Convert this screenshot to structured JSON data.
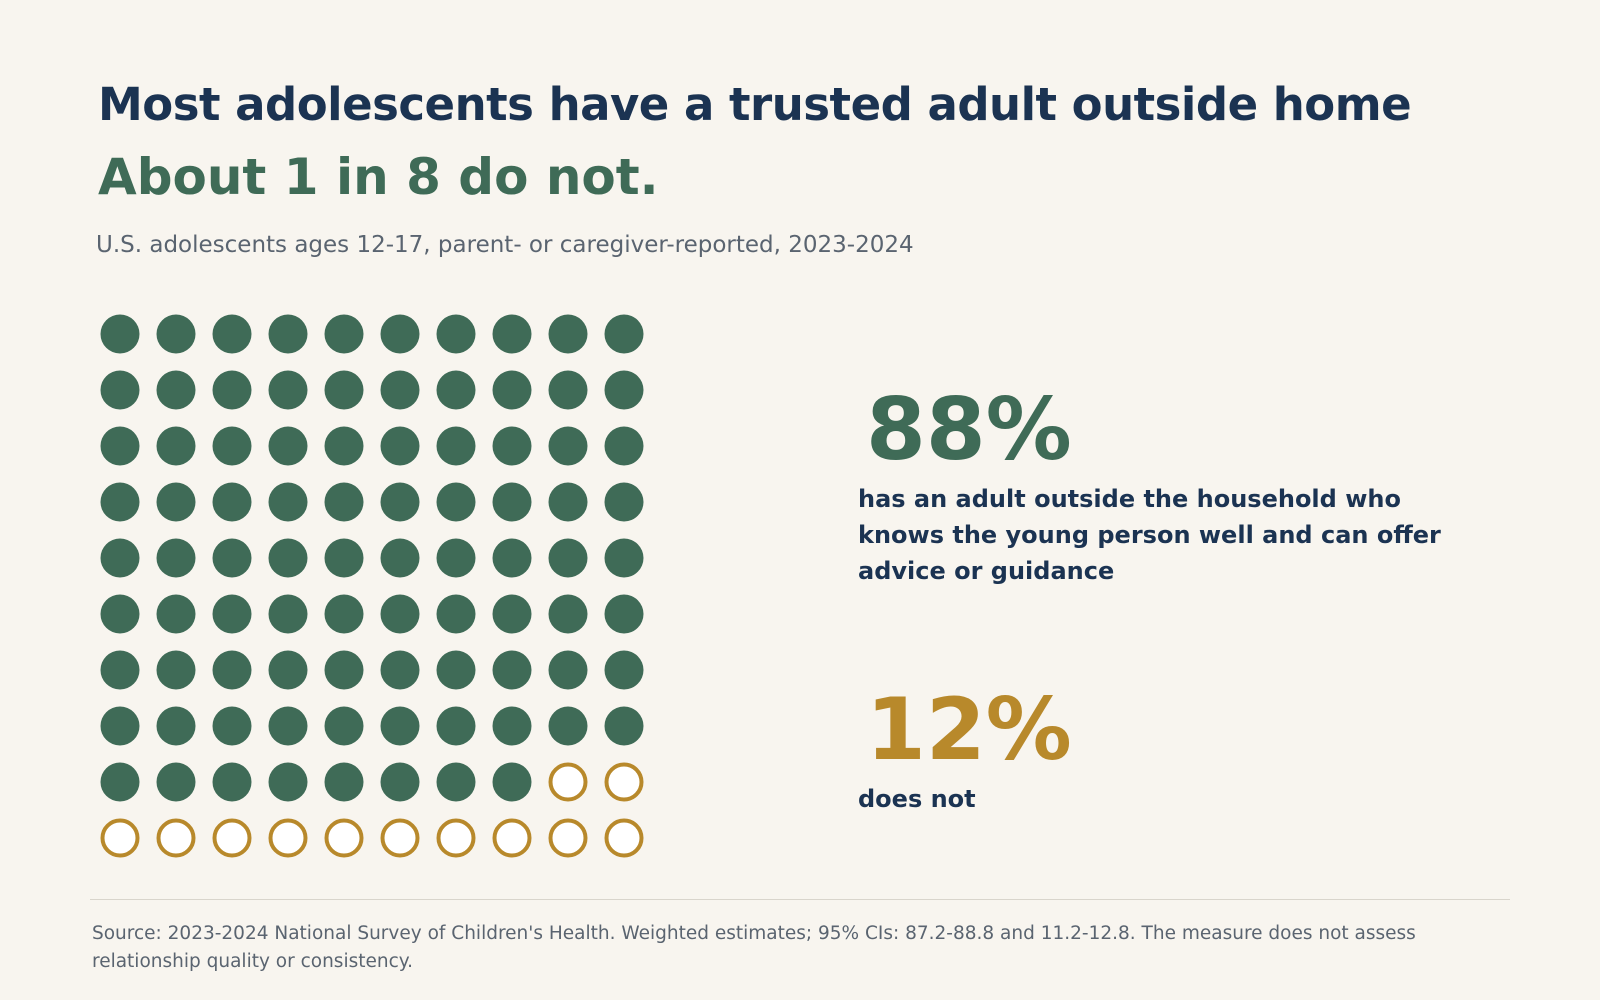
{
  "header": {
    "title": "Most adolescents have a trusted adult outside home",
    "subtitle": "About 1 in 8 do not.",
    "note": "U.S. adolescents ages 12-17, parent- or caregiver-reported, 2023-2024"
  },
  "stats": {
    "yes": {
      "value": "88%",
      "label": "has an adult outside the household who knows the young person well and can offer advice or guidance"
    },
    "no": {
      "value": "12%",
      "label": "does not"
    }
  },
  "footer": {
    "source": "Source: 2023-2024 National Survey of Children's Health. Weighted estimates; 95% CIs: 87.2-88.8 and 11.2-12.8. The measure does not assess relationship quality or consistency."
  },
  "colors": {
    "filled": "#3f6b57",
    "outline": "#b8892b",
    "background": "#f8f5ef"
  },
  "chart_data": {
    "type": "waffle",
    "total": 100,
    "rows": 10,
    "columns": 10,
    "categories": [
      "has an adult outside the household",
      "does not"
    ],
    "values": [
      88,
      12
    ]
  }
}
